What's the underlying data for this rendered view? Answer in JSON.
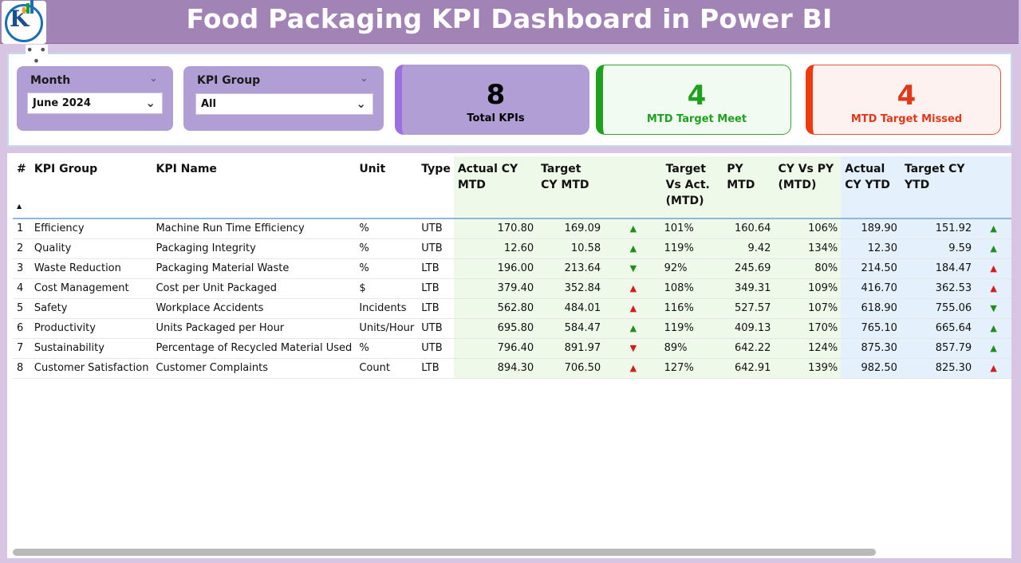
{
  "header": {
    "title": "Food Packaging KPI Dashboard in Power BI"
  },
  "filters": {
    "month": {
      "label": "Month",
      "value": "June 2024"
    },
    "kpi_group": {
      "label": "KPI Group",
      "value": "All"
    }
  },
  "cards": {
    "total": {
      "value": "8",
      "caption": "Total KPIs"
    },
    "meet": {
      "value": "4",
      "caption": "MTD Target Meet"
    },
    "missed": {
      "value": "4",
      "caption": "MTD Target Missed"
    }
  },
  "colors": {
    "header": "#a183b6",
    "meet": "#1fa11f",
    "missed": "#e2381a",
    "mtd_bg": "#eff9e9",
    "ytd_bg": "#e4f0fb"
  },
  "table": {
    "columns": [
      "#",
      "KPI Group",
      "KPI Name",
      "Unit",
      "Type",
      "Actual CY MTD",
      "Target CY MTD",
      "",
      "Target Vs Act. (MTD)",
      "PY MTD",
      "CY Vs PY (MTD)",
      "Actual CY YTD",
      "Target CY YTD",
      ""
    ],
    "rows": [
      {
        "n": "1",
        "group": "Efficiency",
        "name": "Machine Run Time Efficiency",
        "unit": "%",
        "type": "UTB",
        "act_mtd": "170.80",
        "tgt_mtd": "169.09",
        "mtd_icon": "up-green",
        "tva_mtd": "101%",
        "py_mtd": "160.64",
        "cvp_mtd": "106%",
        "act_ytd": "189.90",
        "tgt_ytd": "151.92",
        "ytd_icon": "up-green"
      },
      {
        "n": "2",
        "group": "Quality",
        "name": "Packaging Integrity",
        "unit": "%",
        "type": "UTB",
        "act_mtd": "12.60",
        "tgt_mtd": "10.58",
        "mtd_icon": "up-green",
        "tva_mtd": "119%",
        "py_mtd": "9.42",
        "cvp_mtd": "134%",
        "act_ytd": "12.30",
        "tgt_ytd": "9.59",
        "ytd_icon": "up-green"
      },
      {
        "n": "3",
        "group": "Waste Reduction",
        "name": "Packaging Material Waste",
        "unit": "%",
        "type": "LTB",
        "act_mtd": "196.00",
        "tgt_mtd": "213.64",
        "mtd_icon": "down-green",
        "tva_mtd": "92%",
        "py_mtd": "245.69",
        "cvp_mtd": "80%",
        "act_ytd": "214.50",
        "tgt_ytd": "184.47",
        "ytd_icon": "up-red"
      },
      {
        "n": "4",
        "group": "Cost Management",
        "name": "Cost per Unit Packaged",
        "unit": "$",
        "type": "LTB",
        "act_mtd": "379.40",
        "tgt_mtd": "352.84",
        "mtd_icon": "up-red",
        "tva_mtd": "108%",
        "py_mtd": "349.31",
        "cvp_mtd": "109%",
        "act_ytd": "416.70",
        "tgt_ytd": "362.53",
        "ytd_icon": "up-red"
      },
      {
        "n": "5",
        "group": "Safety",
        "name": "Workplace Accidents",
        "unit": "Incidents",
        "type": "LTB",
        "act_mtd": "562.80",
        "tgt_mtd": "484.01",
        "mtd_icon": "up-red",
        "tva_mtd": "116%",
        "py_mtd": "527.57",
        "cvp_mtd": "107%",
        "act_ytd": "618.90",
        "tgt_ytd": "755.06",
        "ytd_icon": "down-green"
      },
      {
        "n": "6",
        "group": "Productivity",
        "name": "Units Packaged per Hour",
        "unit": "Units/Hour",
        "type": "UTB",
        "act_mtd": "695.80",
        "tgt_mtd": "584.47",
        "mtd_icon": "up-green",
        "tva_mtd": "119%",
        "py_mtd": "409.13",
        "cvp_mtd": "170%",
        "act_ytd": "765.10",
        "tgt_ytd": "665.64",
        "ytd_icon": "up-green"
      },
      {
        "n": "7",
        "group": "Sustainability",
        "name": "Percentage of Recycled Material Used",
        "unit": "%",
        "type": "UTB",
        "act_mtd": "796.40",
        "tgt_mtd": "891.97",
        "mtd_icon": "down-red",
        "tva_mtd": "89%",
        "py_mtd": "642.22",
        "cvp_mtd": "124%",
        "act_ytd": "875.30",
        "tgt_ytd": "857.79",
        "ytd_icon": "up-green"
      },
      {
        "n": "8",
        "group": "Customer Satisfaction",
        "name": "Customer Complaints",
        "unit": "Count",
        "type": "LTB",
        "act_mtd": "894.30",
        "tgt_mtd": "706.50",
        "mtd_icon": "up-red",
        "tva_mtd": "127%",
        "py_mtd": "642.91",
        "cvp_mtd": "139%",
        "act_ytd": "982.50",
        "tgt_ytd": "825.30",
        "ytd_icon": "up-red"
      }
    ]
  }
}
